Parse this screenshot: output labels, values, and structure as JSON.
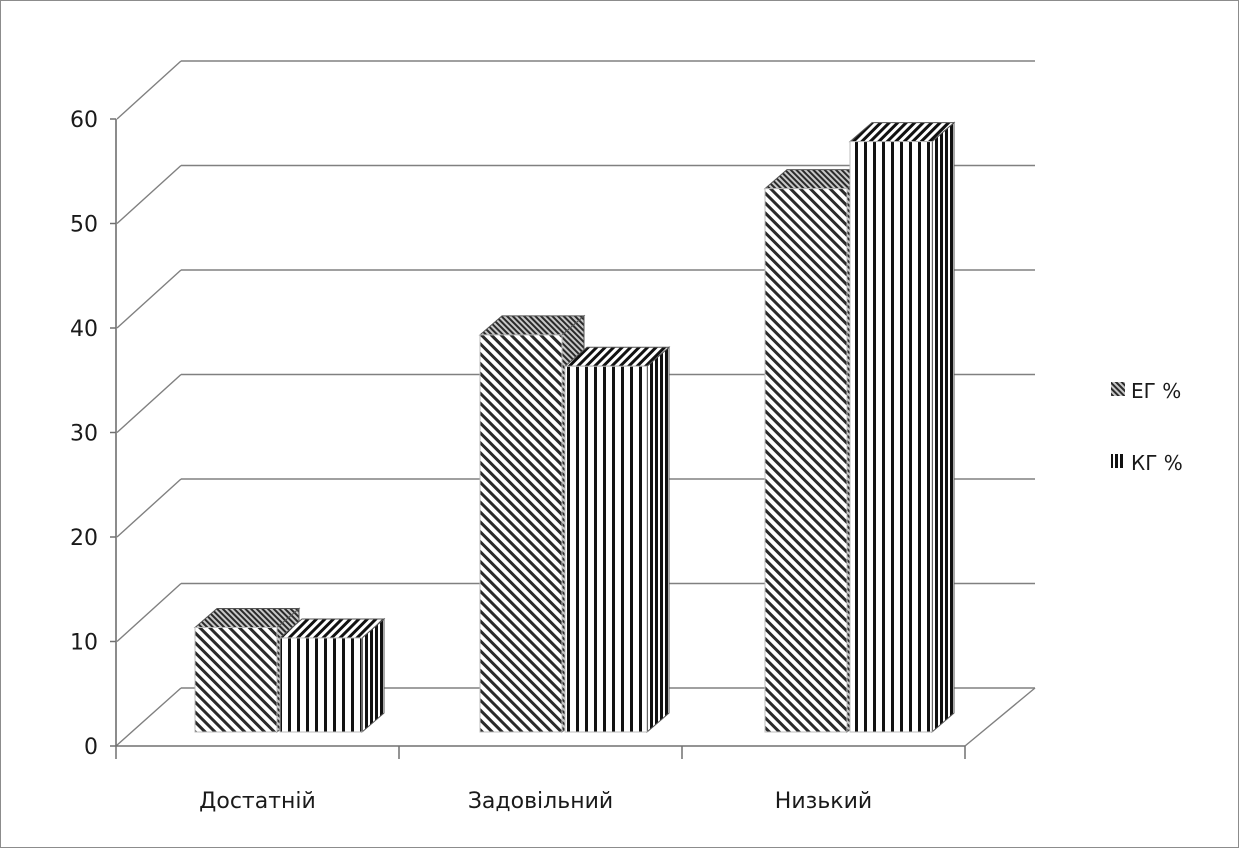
{
  "chart_data": {
    "type": "bar",
    "title": "",
    "xlabel": "",
    "ylabel": "",
    "categories": [
      "Достатній",
      "Задовільний",
      "Низький"
    ],
    "series": [
      {
        "name": "ЕГ %",
        "values": [
          10,
          38,
          52
        ],
        "pattern": "diagonal"
      },
      {
        "name": "КГ %",
        "values": [
          9,
          35,
          56.5
        ],
        "pattern": "vertical"
      }
    ],
    "ylim": [
      0,
      60
    ],
    "yticks": [
      0,
      10,
      20,
      30,
      40,
      50,
      60
    ],
    "grid": true,
    "legend_position": "right",
    "three_d": true,
    "colors": {
      "line": "#000000",
      "grid": "#808080",
      "text": "#1a1a1a"
    }
  }
}
